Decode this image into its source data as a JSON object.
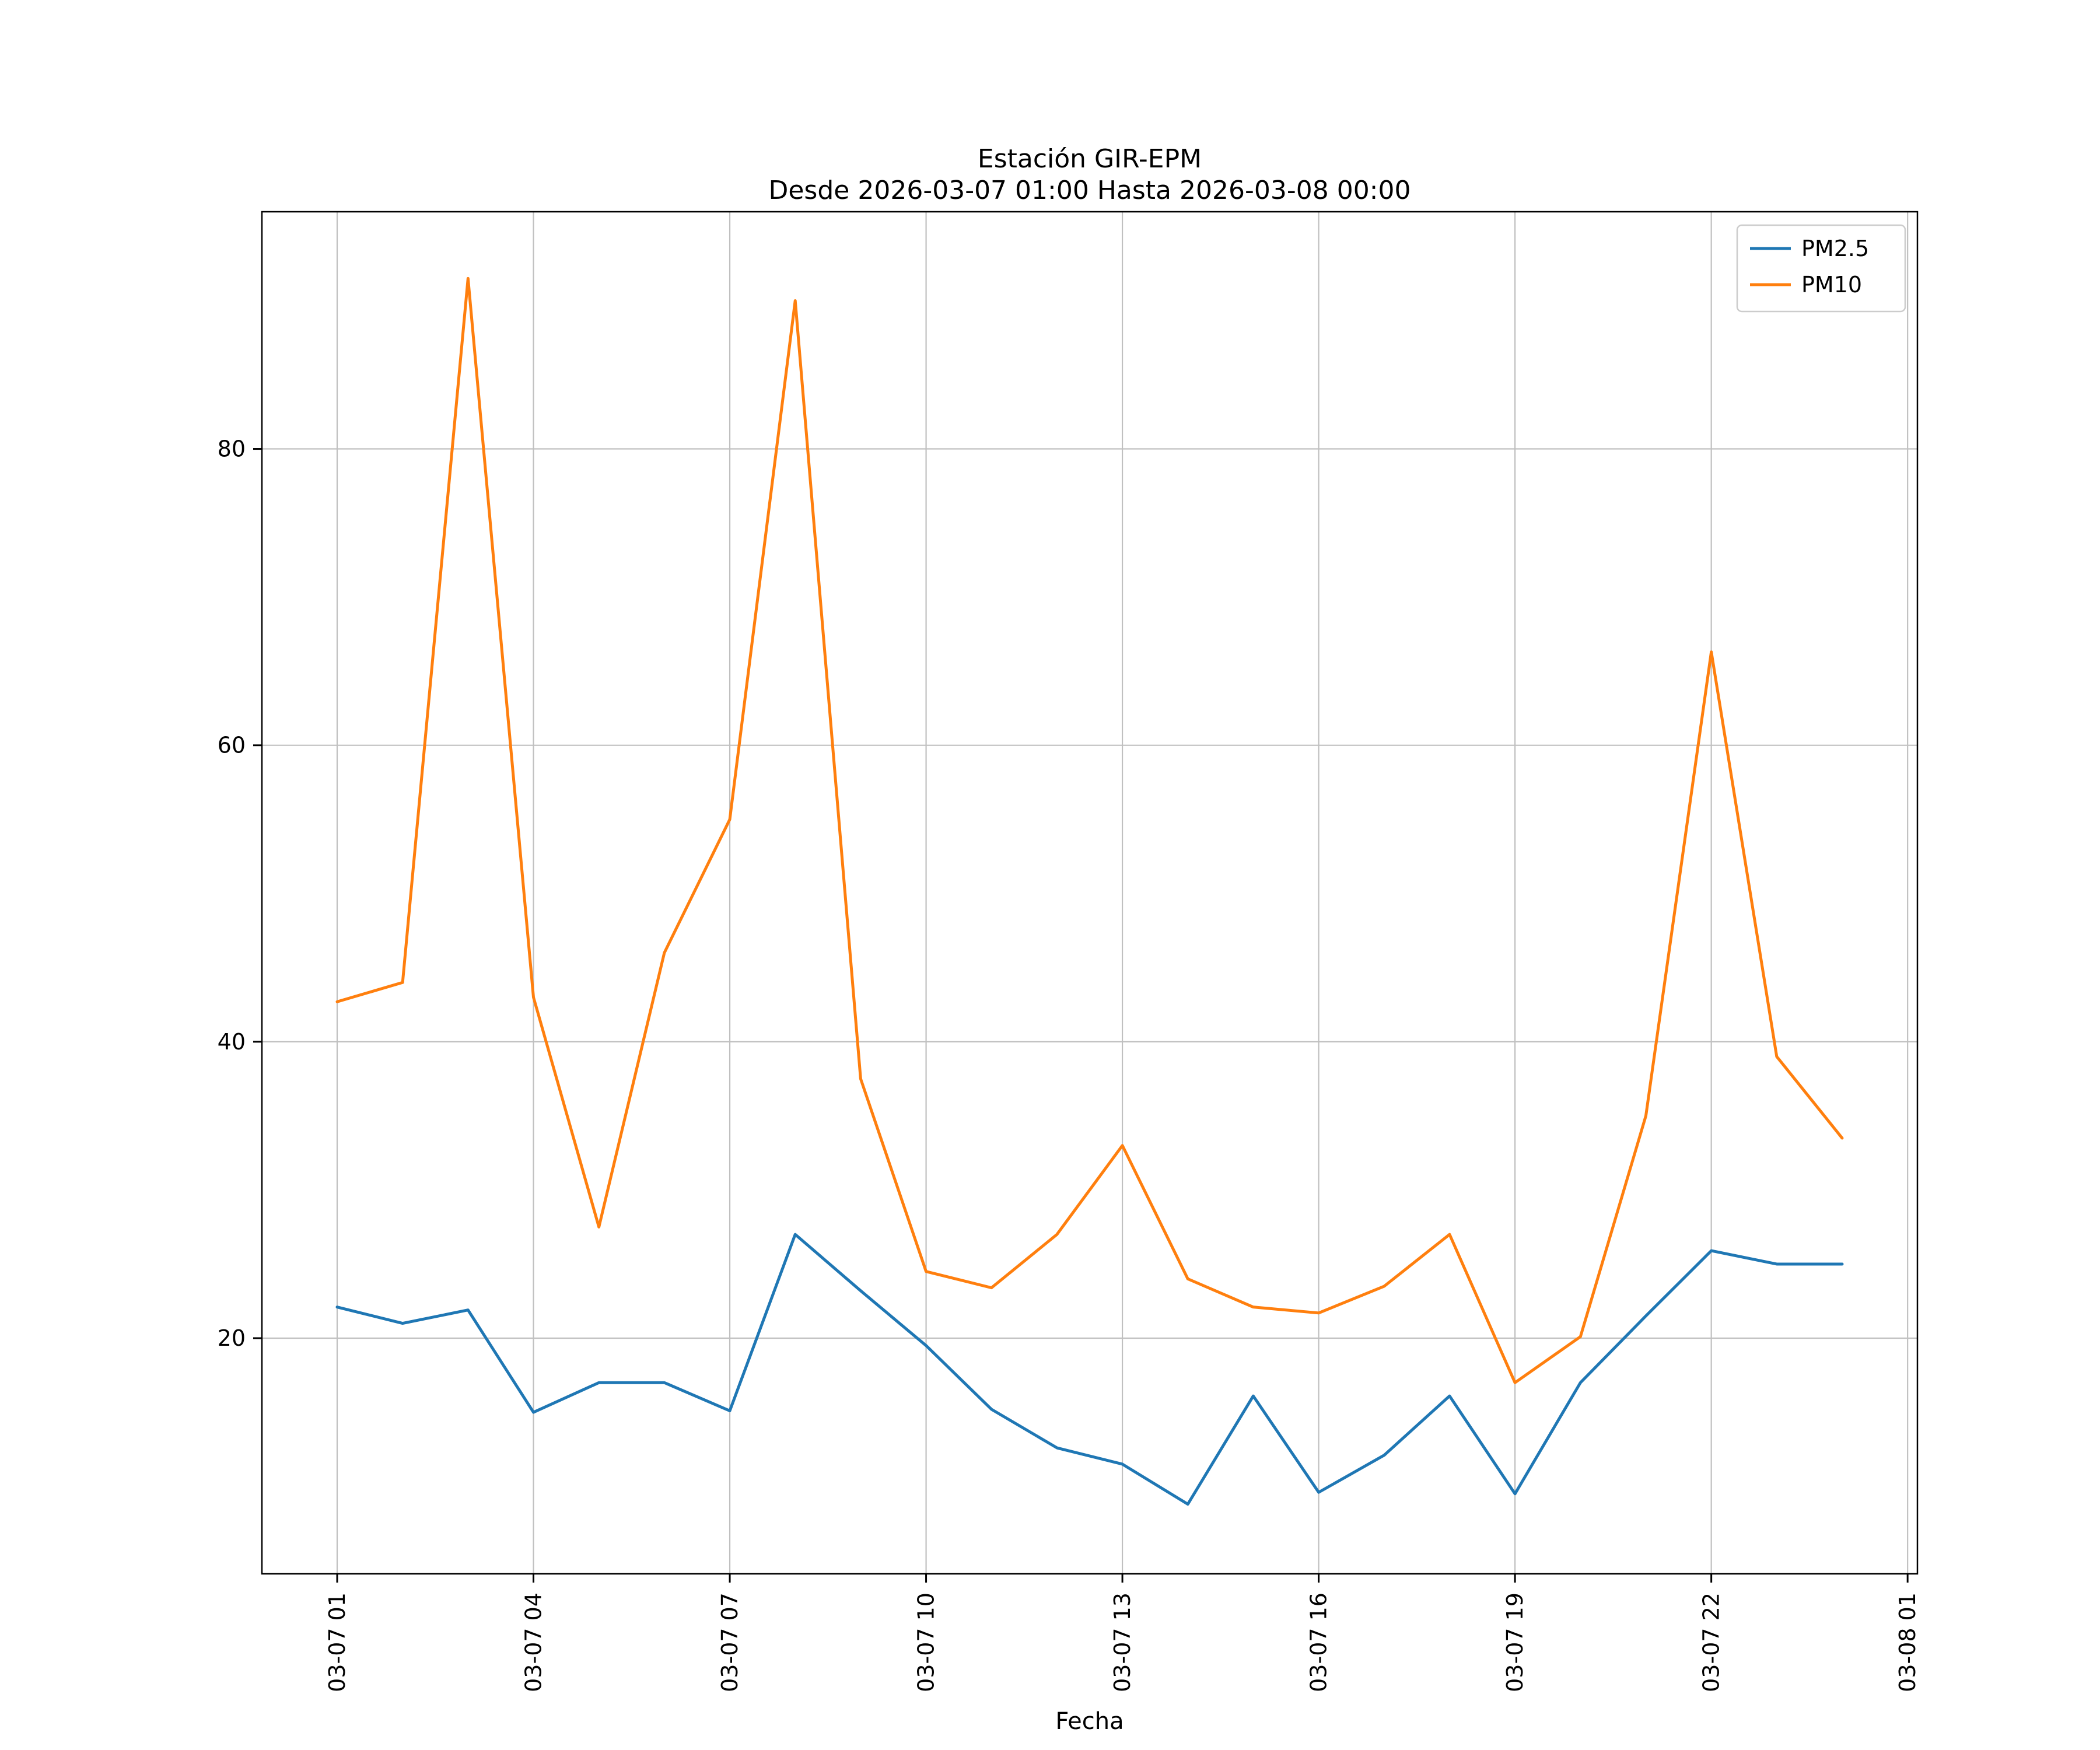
{
  "figure": {
    "title": "Estación GIR-EPM",
    "subtitle": "Desde 2026-03-07 01:00 Hasta 2026-03-08 00:00",
    "xlabel": "Fecha"
  },
  "chart_data": {
    "type": "line",
    "title": "Estación GIR-EPM",
    "subtitle": "Desde 2026-03-07 01:00 Hasta 2026-03-08 00:00",
    "xlabel": "Fecha",
    "ylabel": "",
    "grid": true,
    "legend_position": "upper right",
    "background_color": "#ffffff",
    "grid_color": "#c0c0c0",
    "spine_color": "#000000",
    "xlim": [
      -0.15,
      25.15
    ],
    "ylim": [
      4.1,
      96.0
    ],
    "x_tick_positions": [
      1,
      4,
      7,
      10,
      13,
      16,
      19,
      22,
      25
    ],
    "x_tick_labels": [
      "03-07 01",
      "03-07 04",
      "03-07 07",
      "03-07 10",
      "03-07 13",
      "03-07 16",
      "03-07 19",
      "03-07 22",
      "03-08 01"
    ],
    "y_ticks": [
      20,
      40,
      60,
      80
    ],
    "x": [
      1,
      2,
      3,
      4,
      5,
      6,
      7,
      8,
      9,
      10,
      11,
      12,
      13,
      14,
      15,
      16,
      17,
      18,
      19,
      20,
      21,
      22,
      23,
      24
    ],
    "series": [
      {
        "name": "PM2.5",
        "color": "#1f77b4",
        "values": [
          22.1,
          21.0,
          21.9,
          15.0,
          17.0,
          17.0,
          15.1,
          27.0,
          23.2,
          19.5,
          15.2,
          12.6,
          11.5,
          8.8,
          16.1,
          9.6,
          12.1,
          16.1,
          9.5,
          17.0,
          21.5,
          25.9,
          25.0,
          25.0
        ]
      },
      {
        "name": "PM10",
        "color": "#ff7f0e",
        "values": [
          42.7,
          44.0,
          91.5,
          43.0,
          27.5,
          46.0,
          55.0,
          90.0,
          37.5,
          24.5,
          23.4,
          27.0,
          33.0,
          24.0,
          22.1,
          21.7,
          23.5,
          27.0,
          17.0,
          20.1,
          35.0,
          66.3,
          39.0,
          33.5
        ]
      }
    ]
  }
}
